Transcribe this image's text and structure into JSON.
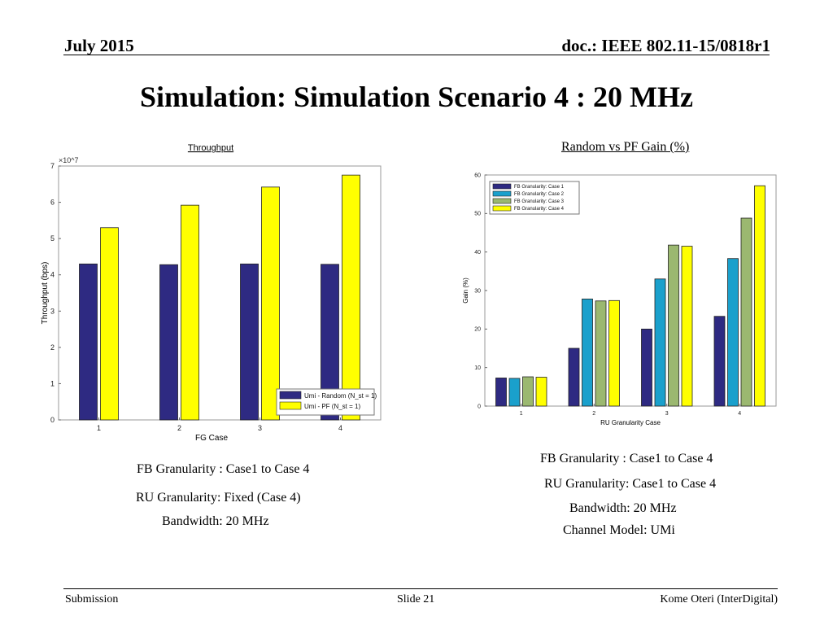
{
  "header": {
    "date": "July 2015",
    "doc": "doc.: IEEE 802.11-15/0818r1"
  },
  "title": "Simulation: Simulation Scenario 4 : 20 MHz",
  "chart_data": [
    {
      "type": "bar",
      "title": "Throughput",
      "xlabel": "FG",
      "xlabel_suffix": "Case",
      "ylabel": "Throughput (bps)",
      "y_multiplier": "×10^7",
      "categories": [
        "1",
        "2",
        "3",
        "4"
      ],
      "series": [
        {
          "name": "Umi - Random (N_st = 1)",
          "color": "#2e2a82",
          "values": [
            4.3,
            4.28,
            4.3,
            4.29
          ]
        },
        {
          "name": "Umi - PF (N_st = 1)",
          "color": "#ffff00",
          "values": [
            5.3,
            5.92,
            6.42,
            6.75
          ]
        }
      ],
      "ylim": [
        0,
        7
      ],
      "yticks": [
        "0",
        "1",
        "2",
        "3",
        "4",
        "5",
        "6",
        "7"
      ],
      "grid": false,
      "legend": "bottom-right"
    },
    {
      "type": "bar",
      "title": "Random vs PF Gain  (%)",
      "xlabel": "RU Granularity Case",
      "ylabel": "Gain (%)",
      "categories": [
        "1",
        "2",
        "3",
        "4"
      ],
      "series": [
        {
          "name": "FB Granularity: Case 1",
          "color": "#2e2a82",
          "values": [
            7.3,
            15.0,
            20.0,
            23.3
          ]
        },
        {
          "name": "FB Granularity: Case 2",
          "color": "#1aa0cc",
          "values": [
            7.2,
            27.8,
            33.0,
            38.3
          ]
        },
        {
          "name": "FB Granularity: Case 3",
          "color": "#9bb870",
          "values": [
            7.6,
            27.3,
            41.8,
            48.8
          ]
        },
        {
          "name": "FB Granularity: Case 4",
          "color": "#ffff00",
          "values": [
            7.5,
            27.4,
            41.5,
            57.2
          ]
        }
      ],
      "ylim": [
        0,
        60
      ],
      "yticks": [
        "0",
        "10",
        "20",
        "30",
        "40",
        "50",
        "60"
      ],
      "grid": false,
      "legend": "top-left"
    }
  ],
  "notes_left": {
    "fb": "FB Granularity : Case1 to Case 4",
    "ru": "RU Granularity: Fixed (Case 4)",
    "bw": "Bandwidth: 20 MHz"
  },
  "notes_right": {
    "fb": "FB Granularity : Case1 to Case 4",
    "ru": "RU Granularity: Case1 to Case 4",
    "bw": "Bandwidth: 20 MHz",
    "channel": "Channel Model: UMi"
  },
  "footer": {
    "left": "Submission",
    "center": "Slide 21",
    "right": "Kome Oteri (InterDigital)"
  }
}
